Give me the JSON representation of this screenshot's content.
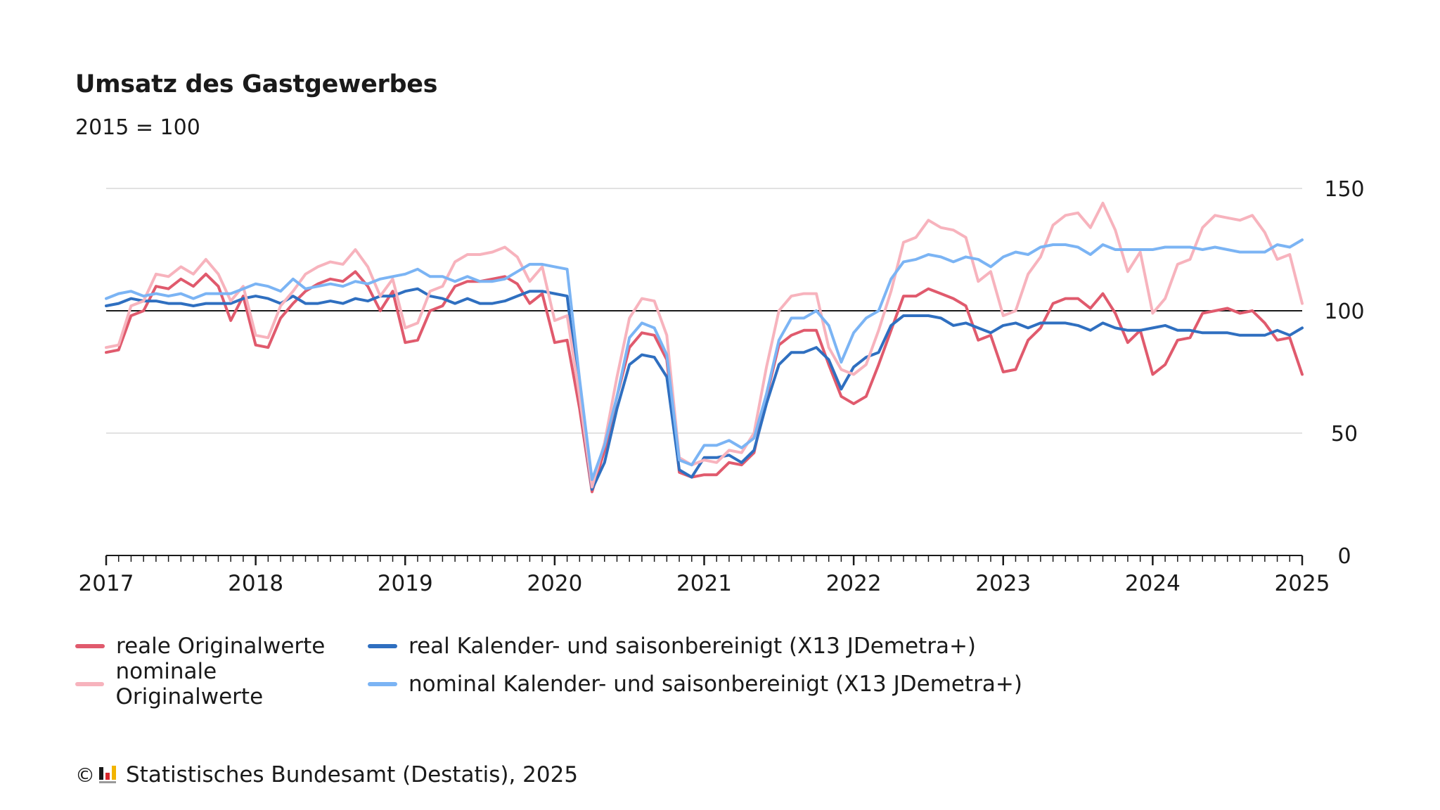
{
  "chart_data": {
    "type": "line",
    "title": "Umsatz des Gastgewerbes",
    "subtitle": "2015 = 100",
    "xlabel": "",
    "ylabel": "",
    "x_start": "2017-01",
    "x_ticks": [
      "2017",
      "2018",
      "2019",
      "2020",
      "2021",
      "2022",
      "2023",
      "2024",
      "2025"
    ],
    "y_ticks": [
      0,
      50,
      100,
      150
    ],
    "ylim": [
      0,
      150
    ],
    "reference_line": 100,
    "grid": true,
    "legend_position": "bottom",
    "series": [
      {
        "name": "reale Originalwerte",
        "color": "#e05a6d",
        "values": [
          83,
          84,
          98,
          100,
          110,
          109,
          113,
          110,
          115,
          110,
          96,
          106,
          86,
          85,
          97,
          103,
          108,
          111,
          113,
          112,
          116,
          110,
          100,
          108,
          87,
          88,
          100,
          102,
          110,
          112,
          112,
          113,
          114,
          111,
          103,
          107,
          87,
          88,
          60,
          26,
          43,
          65,
          85,
          91,
          90,
          80,
          34,
          32,
          33,
          33,
          38,
          37,
          42,
          65,
          86,
          90,
          92,
          92,
          78,
          65,
          62,
          65,
          78,
          92,
          106,
          106,
          109,
          107,
          105,
          102,
          88,
          90,
          75,
          76,
          88,
          93,
          103,
          105,
          105,
          101,
          107,
          99,
          87,
          92,
          74,
          78,
          88,
          89,
          99,
          100,
          101,
          99,
          100,
          95,
          88,
          89,
          74
        ]
      },
      {
        "name": "real Kalender- und saisonbereinigt (X13 JDemetra+)",
        "color": "#2f6fc0",
        "values": [
          102,
          103,
          105,
          104,
          104,
          103,
          103,
          102,
          103,
          103,
          103,
          105,
          106,
          105,
          103,
          106,
          103,
          103,
          104,
          103,
          105,
          104,
          106,
          106,
          108,
          109,
          106,
          105,
          103,
          105,
          103,
          103,
          104,
          106,
          108,
          108,
          107,
          106,
          65,
          27,
          38,
          60,
          78,
          82,
          81,
          73,
          35,
          32,
          40,
          40,
          41,
          38,
          43,
          62,
          78,
          83,
          83,
          85,
          80,
          68,
          77,
          81,
          83,
          94,
          98,
          98,
          98,
          97,
          94,
          95,
          93,
          91,
          94,
          95,
          93,
          95,
          95,
          95,
          94,
          92,
          95,
          93,
          92,
          92,
          93,
          94,
          92,
          92,
          91,
          91,
          91,
          90,
          90,
          90,
          92,
          90,
          93
        ]
      },
      {
        "name": "nominale Originalwerte",
        "color": "#f7b3bd",
        "values": [
          85,
          86,
          102,
          104,
          115,
          114,
          118,
          115,
          121,
          115,
          104,
          110,
          90,
          89,
          102,
          108,
          115,
          118,
          120,
          119,
          125,
          118,
          106,
          113,
          93,
          95,
          108,
          110,
          120,
          123,
          123,
          124,
          126,
          122,
          112,
          118,
          96,
          98,
          65,
          28,
          46,
          73,
          97,
          105,
          104,
          90,
          40,
          37,
          39,
          38,
          43,
          42,
          50,
          77,
          100,
          106,
          107,
          107,
          85,
          76,
          74,
          78,
          92,
          108,
          128,
          130,
          137,
          134,
          133,
          130,
          112,
          116,
          98,
          100,
          115,
          122,
          135,
          139,
          140,
          134,
          144,
          133,
          116,
          124,
          99,
          105,
          119,
          121,
          134,
          139,
          138,
          137,
          139,
          132,
          121,
          123,
          103
        ]
      },
      {
        "name": "nominal Kalender- und saisonbereinigt (X13 JDemetra+)",
        "color": "#7bb4f4",
        "values": [
          105,
          107,
          108,
          106,
          107,
          106,
          107,
          105,
          107,
          107,
          107,
          109,
          111,
          110,
          108,
          113,
          109,
          110,
          111,
          110,
          112,
          111,
          113,
          114,
          115,
          117,
          114,
          114,
          112,
          114,
          112,
          112,
          113,
          116,
          119,
          119,
          118,
          117,
          72,
          31,
          45,
          65,
          89,
          95,
          93,
          82,
          39,
          37,
          45,
          45,
          47,
          44,
          48,
          66,
          88,
          97,
          97,
          100,
          94,
          79,
          91,
          97,
          100,
          113,
          120,
          121,
          123,
          122,
          120,
          122,
          121,
          118,
          122,
          124,
          123,
          126,
          127,
          127,
          126,
          123,
          127,
          125,
          125,
          125,
          125,
          126,
          126,
          126,
          125,
          126,
          125,
          124,
          124,
          124,
          127,
          126,
          129
        ]
      }
    ]
  },
  "legend": {
    "row1": [
      "reale Originalwerte",
      "real Kalender- und saisonbereinigt (X13 JDemetra+)"
    ],
    "row2": [
      "nominale Originalwerte",
      "nominal Kalender- und saisonbereinigt (X13 JDemetra+)"
    ]
  },
  "footer": {
    "copyright_symbol": "©",
    "text": "Statistisches Bundesamt (Destatis), 2025"
  }
}
